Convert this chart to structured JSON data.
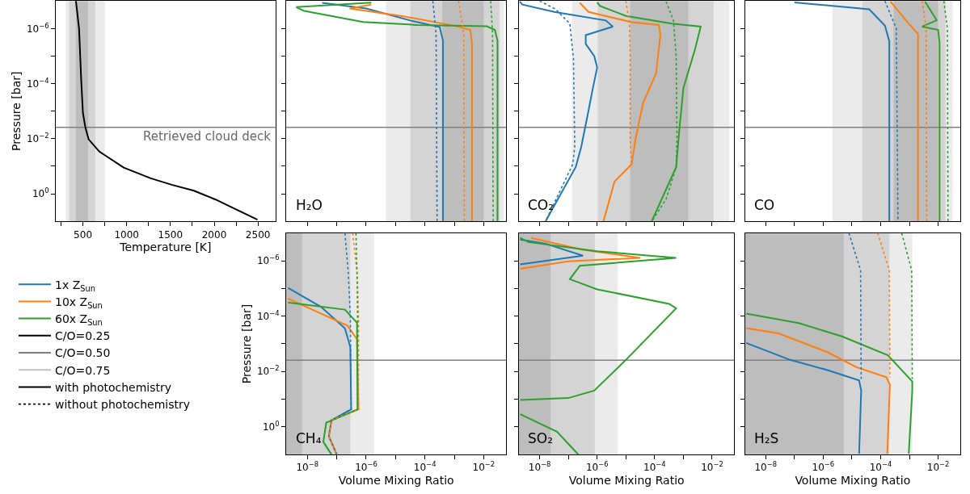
{
  "chart_data": [
    {
      "type": "line",
      "xlabel": "Temperature [K]",
      "ylabel": "Pressure [bar]",
      "log": "y",
      "xlim": [
        190,
        2700
      ],
      "ylim": [
        10,
        1e-07
      ],
      "xticks": [
        {
          "value": 250,
          "label": null
        },
        500,
        {
          "value": 750,
          "label": null
        },
        1000,
        {
          "value": 1250,
          "label": null
        },
        1500,
        {
          "value": 1750,
          "label": null
        },
        2000,
        {
          "value": 2250,
          "label": null
        },
        2500
      ],
      "yticks": [
        {
          "value": 1e-06,
          "label": "10$^{−6}$"
        },
        {
          "value": 1e-05,
          "label": null
        },
        {
          "value": 0.0001,
          "label": "10$^{−4}$"
        },
        {
          "value": 0.001,
          "label": null
        },
        {
          "value": 0.01,
          "label": "10$^{−2}$"
        },
        {
          "value": 0.1,
          "label": null
        },
        {
          "value": 1,
          "label": "10$^{0}$"
        }
      ],
      "bands": [
        {
          "axis": "x",
          "from": 303,
          "to": 750,
          "color": "#ebebeb"
        },
        {
          "axis": "x",
          "from": 343,
          "to": 642,
          "color": "#d4d4d4"
        },
        {
          "axis": "x",
          "from": 420,
          "to": 560,
          "color": "#bdbdbd"
        }
      ],
      "ref_lines": [
        {
          "axis": "y",
          "value": 0.0039,
          "label": "Retrieved cloud deck",
          "color": "#808080"
        }
      ],
      "series": [
        {
          "color": "#000000",
          "x": [
            420,
            456,
            481,
            500,
            528,
            565,
            688,
            966,
            1275,
            1522,
            1769,
            2016,
            2494
          ],
          "values": [
            1e-07,
            1e-06,
            7.9e-05,
            0.00115,
            0.0039,
            0.0105,
            0.0295,
            0.112,
            0.275,
            0.479,
            0.776,
            1.62,
            8.7
          ]
        }
      ]
    },
    {
      "type": "line",
      "annotations": [
        "H₂O"
      ],
      "log": "xy",
      "xlim": [
        1.9e-09,
        0.059
      ],
      "ylim": [
        10,
        1e-07
      ],
      "tick_labels": false,
      "xticks": [
        {
          "value": 1e-08,
          "label": null
        },
        {
          "value": 1e-07,
          "label": null
        },
        {
          "value": 1e-06,
          "label": null
        },
        {
          "value": 1e-05,
          "label": null
        },
        {
          "value": 0.0001,
          "label": null
        },
        {
          "value": 0.001,
          "label": null
        },
        {
          "value": 0.01,
          "label": null
        }
      ],
      "yticks": [
        {
          "value": 1e-06,
          "label": null
        },
        {
          "value": 1e-05,
          "label": null
        },
        {
          "value": 0.0001,
          "label": null
        },
        {
          "value": 0.001,
          "label": null
        },
        {
          "value": 0.01,
          "label": null
        },
        {
          "value": 0.1,
          "label": null
        },
        {
          "value": 1,
          "label": null
        }
      ],
      "bands": [
        {
          "axis": "x",
          "from": 4.7e-06,
          "to": 0.049,
          "color": "#ebebeb"
        },
        {
          "axis": "x",
          "from": 3.2e-05,
          "to": 0.035,
          "color": "#d4d4d4"
        },
        {
          "axis": "x",
          "from": 0.00039,
          "to": 0.01,
          "color": "#bdbdbd"
        }
      ],
      "ref_lines": [
        {
          "axis": "y",
          "value": 0.0039,
          "color": "#808080"
        }
      ],
      "series": [
        {
          "color": "#1f77b4",
          "x": [
            3.2e-08,
            1e-06,
            3.2e-05,
            0.00032,
            0.00041,
            0.00041
          ],
          "values": [
            1.17e-07,
            1.86e-07,
            5.1e-07,
            8.9e-07,
            2.75e-06,
            10
          ]
        },
        {
          "color": "#ff7f0e",
          "x": [
            1.5e-06,
            2.75e-07,
            1.86e-05,
            0.001,
            0.0035,
            0.004,
            0.004
          ],
          "values": [
            1.35e-07,
            1.86e-07,
            3.6e-07,
            7.9e-07,
            1.12e-06,
            3.2e-06,
            10
          ]
        },
        {
          "color": "#2ca02c",
          "x": [
            1.5e-06,
            4.2e-09,
            7.8e-09,
            7.9e-07,
            5.4e-05,
            0.0126,
            0.024,
            0.0295,
            0.0295
          ],
          "values": [
            1.15e-07,
            1.66e-07,
            2.3e-07,
            5.8e-07,
            7.4e-07,
            8.3e-07,
            1.12e-06,
            2.75e-06,
            10
          ]
        },
        {
          "color": "#1f77b4",
          "line_style": "dotted",
          "x": [
            0.000186,
            0.00024,
            0.00026
          ],
          "values": [
            1e-07,
            1.6e-06,
            10
          ]
        },
        {
          "color": "#ff7f0e",
          "line_style": "dotted",
          "x": [
            0.0014,
            0.0021,
            0.0022
          ],
          "values": [
            1e-07,
            1.6e-06,
            10
          ]
        },
        {
          "color": "#2ca02c",
          "line_style": "dotted",
          "x": [
            0.0174,
            0.02,
            0.021
          ],
          "values": [
            1e-07,
            1.6e-06,
            10
          ]
        }
      ]
    },
    {
      "type": "line",
      "annotations": [
        "CO₂"
      ],
      "log": "xy",
      "xlim": [
        1.9e-09,
        0.059
      ],
      "ylim": [
        10,
        1e-07
      ],
      "tick_labels": false,
      "xticks": [
        {
          "value": 1e-08,
          "label": null
        },
        {
          "value": 1e-07,
          "label": null
        },
        {
          "value": 1e-06,
          "label": null
        },
        {
          "value": 1e-05,
          "label": null
        },
        {
          "value": 0.0001,
          "label": null
        },
        {
          "value": 0.001,
          "label": null
        },
        {
          "value": 0.01,
          "label": null
        }
      ],
      "yticks": [
        {
          "value": 1e-06,
          "label": null
        },
        {
          "value": 1e-05,
          "label": null
        },
        {
          "value": 0.0001,
          "label": null
        },
        {
          "value": 0.001,
          "label": null
        },
        {
          "value": 0.01,
          "label": null
        },
        {
          "value": 0.1,
          "label": null
        },
        {
          "value": 1,
          "label": null
        }
      ],
      "bands": [
        {
          "axis": "x",
          "from": 1.32e-07,
          "to": 0.04,
          "color": "#ebebeb"
        },
        {
          "axis": "x",
          "from": 1.05e-06,
          "to": 0.0112,
          "color": "#d4d4d4"
        },
        {
          "axis": "x",
          "from": 1.41e-05,
          "to": 0.00148,
          "color": "#bdbdbd"
        }
      ],
      "ref_lines": [
        {
          "axis": "y",
          "value": 0.0039,
          "color": "#808080"
        }
      ],
      "series": [
        {
          "color": "#1f77b4",
          "x": [
            2e-09,
            2.5e-09,
            3.2e-08,
            2e-06,
            3.5e-06,
            4e-07,
            4e-07,
            7.9e-07,
            1e-06,
            7.1e-07,
            4.5e-07,
            2.8e-07,
            1.8e-07,
            1.6e-08
          ],
          "values": [
            1.05e-07,
            1.35e-07,
            2.5e-07,
            5.1e-07,
            8.5e-07,
            1.74e-06,
            3.6e-06,
            1e-05,
            2.6e-05,
            0.000145,
            0.00166,
            0.0195,
            0.107,
            10
          ]
        },
        {
          "color": "#ff7f0e",
          "x": [
            2.5e-07,
            5e-07,
            1.58e-05,
            0.000141,
            0.000158,
            0.000112,
            4e-05,
            2.2e-05,
            1.58e-05,
            4e-06,
            1.66e-06
          ],
          "values": [
            1.17e-07,
            2.5e-07,
            5.9e-07,
            7.4e-07,
            1.74e-06,
            4.3e-05,
            0.00049,
            0.0093,
            0.085,
            0.36,
            10
          ]
        },
        {
          "color": "#2ca02c",
          "x": [
            1e-06,
            1.26e-06,
            1e-05,
            0.0004,
            0.004,
            0.0025,
            0.001,
            0.00071,
            0.00056,
            7.9e-05
          ],
          "values": [
            1.12e-07,
            1.51e-07,
            3.5e-07,
            6.6e-07,
            8.5e-07,
            6e-06,
            0.000145,
            0.0058,
            0.107,
            10
          ]
        },
        {
          "color": "#1f77b4",
          "line_style": "dotted",
          "x": [
            1e-08,
            3.5e-08,
            1.12e-07,
            1.5e-07,
            1.66e-07,
            1.41e-07,
            1.6e-08
          ],
          "values": [
            1e-07,
            1.95e-07,
            6.6e-07,
            1.26e-05,
            0.0195,
            0.085,
            10
          ]
        },
        {
          "color": "#ff7f0e",
          "line_style": "dotted",
          "x": [
            1e-05,
            1.32e-05,
            1.41e-05,
            1.41e-05,
            1.58e-05,
            4e-06,
            1.66e-06
          ],
          "values": [
            1e-07,
            6.3e-07,
            1e-05,
            0.01,
            0.085,
            0.36,
            10
          ]
        },
        {
          "color": "#2ca02c",
          "line_style": "dotted",
          "x": [
            0.00025,
            0.00045,
            0.00056,
            0.0006,
            0.00056,
            0.00025,
            7.9e-05
          ],
          "values": [
            1.05e-07,
            5e-07,
            1e-05,
            0.01,
            0.107,
            1.58,
            10
          ]
        }
      ]
    },
    {
      "type": "line",
      "annotations": [
        "CO"
      ],
      "log": "xy",
      "xlim": [
        1.9e-09,
        0.059
      ],
      "ylim": [
        10,
        1e-07
      ],
      "tick_labels": false,
      "xticks": [
        {
          "value": 1e-08,
          "label": null
        },
        {
          "value": 1e-07,
          "label": null
        },
        {
          "value": 1e-06,
          "label": null
        },
        {
          "value": 1e-05,
          "label": null
        },
        {
          "value": 0.0001,
          "label": null
        },
        {
          "value": 0.001,
          "label": null
        },
        {
          "value": 0.01,
          "label": null
        }
      ],
      "yticks": [
        {
          "value": 1e-06,
          "label": null
        },
        {
          "value": 1e-05,
          "label": null
        },
        {
          "value": 0.0001,
          "label": null
        },
        {
          "value": 0.001,
          "label": null
        },
        {
          "value": 0.01,
          "label": null
        },
        {
          "value": 0.1,
          "label": null
        },
        {
          "value": 1,
          "label": null
        }
      ],
      "bands": [
        {
          "axis": "x",
          "from": 2.1e-06,
          "to": 0.032,
          "color": "#ebebeb"
        },
        {
          "axis": "x",
          "from": 2.3e-05,
          "to": 0.018,
          "color": "#d4d4d4"
        },
        {
          "axis": "x",
          "from": 0.00028,
          "to": 0.01,
          "color": "#bdbdbd"
        }
      ],
      "ref_lines": [
        {
          "axis": "y",
          "value": 0.0039,
          "color": "#808080"
        }
      ],
      "series": [
        {
          "color": "#1f77b4",
          "x": [
            1e-07,
            4e-05,
            0.000141,
            0.0002,
            0.0002
          ],
          "values": [
            1.12e-07,
            2e-07,
            7.9e-07,
            2.9e-06,
            10
          ]
        },
        {
          "color": "#ff7f0e",
          "x": [
            0.00022,
            0.001,
            0.002,
            0.002
          ],
          "values": [
            1.05e-07,
            7.1e-07,
            1.58e-06,
            10
          ]
        },
        {
          "color": "#2ca02c",
          "x": [
            0.0035,
            0.0089,
            0.0028,
            0.01,
            0.0112,
            0.0112
          ],
          "values": [
            1.05e-07,
            5e-07,
            8.5e-07,
            1.12e-06,
            3.2e-06,
            10
          ]
        },
        {
          "color": "#1f77b4",
          "line_style": "dotted",
          "x": [
            0.000141,
            0.00035,
            0.0004
          ],
          "values": [
            1e-07,
            1e-06,
            10
          ]
        },
        {
          "color": "#ff7f0e",
          "line_style": "dotted",
          "x": [
            0.0028,
            0.0038,
            0.004
          ],
          "values": [
            1e-07,
            1e-06,
            10
          ]
        },
        {
          "color": "#2ca02c",
          "line_style": "dotted",
          "x": [
            0.0158,
            0.021,
            0.022
          ],
          "values": [
            1e-07,
            1e-06,
            10
          ]
        }
      ]
    },
    {
      "type": "line",
      "annotations": [
        "CH₄"
      ],
      "xlabel": "Volume Mixing Ratio",
      "ylabel": "Pressure [bar]",
      "log": "xy",
      "xlim": [
        1.9e-09,
        0.059
      ],
      "ylim": [
        10,
        1e-07
      ],
      "legend": "left",
      "xticks": [
        {
          "value": 1e-08,
          "label": "10$^{−8}$"
        },
        {
          "value": 1e-07,
          "label": null
        },
        {
          "value": 1e-06,
          "label": "10$^{−6}$"
        },
        {
          "value": 1e-05,
          "label": null
        },
        {
          "value": 0.0001,
          "label": "10$^{−4}$"
        },
        {
          "value": 0.001,
          "label": null
        },
        {
          "value": 0.01,
          "label": "10$^{−2}$"
        }
      ],
      "yticks": [
        {
          "value": 1e-06,
          "label": "10$^{−6}$"
        },
        {
          "value": 1e-05,
          "label": null
        },
        {
          "value": 0.0001,
          "label": "10$^{−4}$"
        },
        {
          "value": 0.001,
          "label": null
        },
        {
          "value": 0.01,
          "label": "10$^{−2}$"
        },
        {
          "value": 0.1,
          "label": null
        },
        {
          "value": 1,
          "label": "10$^{0}$"
        }
      ],
      "bands": [
        {
          "axis": "x",
          "from": 1.9e-09,
          "to": 1.9e-06,
          "color": "#ebebeb"
        },
        {
          "axis": "x",
          "from": 1.9e-09,
          "to": 2.9e-07,
          "color": "#d4d4d4"
        },
        {
          "axis": "x",
          "from": 1.9e-09,
          "to": 6.6e-09,
          "color": "#bdbdbd"
        }
      ],
      "ref_lines": [
        {
          "axis": "y",
          "value": 0.0039,
          "color": "#808080"
        }
      ],
      "series": [
        {
          "name": "1x Z$_{Sun}$",
          "color": "#1f77b4",
          "x": [
            2.2e-09,
            2.9e-08,
            1.9e-07,
            2.9e-07,
            3.1e-07,
            6.6e-08,
            5.4e-08,
            1e-07
          ],
          "values": [
            9.5e-06,
            4.6e-05,
            0.000275,
            0.00132,
            0.234,
            0.575,
            2.2,
            10
          ]
        },
        {
          "name": "10x Z$_{Sun}$",
          "color": "#ff7f0e",
          "x": [
            2.2e-09,
            2.3e-07,
            4.9e-07,
            5.5e-07,
            6.6e-08,
            5.4e-08,
            1e-07
          ],
          "values": [
            2.3e-05,
            0.00022,
            0.00068,
            0.234,
            0.575,
            2.2,
            10
          ]
        },
        {
          "name": "60x Z$_{Sun}$",
          "color": "#2ca02c",
          "x": [
            2.2e-09,
            1.9e-07,
            4.9e-07,
            5.1e-07,
            4.4e-08,
            3.5e-08,
            6.6e-08
          ],
          "values": [
            3.2e-05,
            5.8e-05,
            0.000174,
            0.234,
            0.71,
            3.5,
            10
          ]
        },
        {
          "name": "C/O=0.25",
          "color": "#000000"
        },
        {
          "name": "C/O=0.50",
          "color": "#808080"
        },
        {
          "name": "C/O=0.75",
          "color": "#c0c0c0"
        },
        {
          "name": "with photochemistry",
          "color": "#000000"
        },
        {
          "name": "without photochemistry",
          "color": "#000000",
          "line_style": "dotted"
        },
        {
          "color": "#1f77b4",
          "line_style": "dotted",
          "x": [
            1.9e-07,
            2.5e-07,
            2.9e-07,
            3.1e-07,
            6.6e-08,
            5.4e-08,
            1e-07
          ],
          "values": [
            1e-07,
            3.1e-06,
            0.0001,
            0.234,
            0.575,
            2.2,
            10
          ]
        },
        {
          "color": "#ff7f0e",
          "line_style": "dotted",
          "x": [
            3.5e-07,
            5e-07,
            5.5e-07,
            5.5e-07,
            6.6e-08,
            5.4e-08,
            1e-07
          ],
          "values": [
            1e-07,
            3.1e-06,
            0.0001,
            0.234,
            0.575,
            2.2,
            10
          ]
        },
        {
          "color": "#2ca02c",
          "line_style": "dotted",
          "x": [
            4.5e-07,
            4.9e-07,
            5.1e-07,
            5.1e-07,
            4.4e-08,
            3.5e-08,
            6.6e-08
          ],
          "values": [
            1e-07,
            3.1e-06,
            0.0001,
            0.234,
            0.71,
            3.5,
            10
          ]
        }
      ]
    },
    {
      "type": "line",
      "annotations": [
        "SO₂"
      ],
      "xlabel": "Volume Mixing Ratio",
      "log": "xy",
      "xlim": [
        1.9e-09,
        0.059
      ],
      "ylim": [
        10,
        1e-07
      ],
      "tick_labels": "x",
      "xticks": [
        {
          "value": 1e-08,
          "label": "10$^{−8}$"
        },
        {
          "value": 1e-07,
          "label": null
        },
        {
          "value": 1e-06,
          "label": "10$^{−6}$"
        },
        {
          "value": 1e-05,
          "label": null
        },
        {
          "value": 0.0001,
          "label": "10$^{−4}$"
        },
        {
          "value": 0.001,
          "label": null
        },
        {
          "value": 0.01,
          "label": "10$^{−2}$"
        }
      ],
      "yticks": [
        {
          "value": 1e-06,
          "label": null
        },
        {
          "value": 1e-05,
          "label": null
        },
        {
          "value": 0.0001,
          "label": null
        },
        {
          "value": 0.001,
          "label": null
        },
        {
          "value": 0.01,
          "label": null
        },
        {
          "value": 0.1,
          "label": null
        },
        {
          "value": 1,
          "label": null
        }
      ],
      "bands": [
        {
          "axis": "x",
          "from": 1.9e-09,
          "to": 5.2e-06,
          "color": "#ebebeb"
        },
        {
          "axis": "x",
          "from": 1.9e-09,
          "to": 8.3e-07,
          "color": "#d4d4d4"
        },
        {
          "axis": "x",
          "from": 1.9e-09,
          "to": 2.4e-08,
          "color": "#bdbdbd"
        }
      ],
      "ref_lines": [
        {
          "axis": "y",
          "value": 0.0039,
          "color": "#808080"
        }
      ],
      "series": [
        {
          "color": "#1f77b4",
          "x": [
            2.1e-09,
            1.6e-08,
            3.2e-07,
            2.1e-09
          ],
          "values": [
            1.7e-07,
            2.4e-07,
            6.5e-07,
            1.35e-06
          ]
        },
        {
          "color": "#ff7f0e",
          "x": [
            5e-09,
            3.2e-07,
            3.2e-05,
            1e-07,
            2.1e-09
          ],
          "values": [
            1.48e-07,
            4e-07,
            7.8e-07,
            1.05e-06,
            1.95e-06
          ]
        },
        {
          "color": "#2ca02c",
          "x": [
            2.1e-09,
            4e-09,
            1e-06,
            0.00056,
            2.5e-07,
            1.12e-07,
            1e-06,
            0.00032,
            0.00056,
            1e-05,
            7.9e-07,
            1e-07,
            2.1e-09,
            null,
            2.1e-09,
            4e-08,
            2.2e-07
          ],
          "values": [
            1.48e-07,
            2.1e-07,
            4.5e-07,
            7.8e-07,
            1.51e-06,
            4.6e-06,
            1.07e-05,
            3.6e-05,
            5.2e-05,
            0.0038,
            0.049,
            0.091,
            0.107,
            null,
            0.35,
            1.51,
            10
          ]
        }
      ]
    },
    {
      "type": "line",
      "annotations": [
        "H₂S"
      ],
      "xlabel": "Volume Mixing Ratio",
      "log": "xy",
      "xlim": [
        1.9e-09,
        0.059
      ],
      "ylim": [
        10,
        1e-07
      ],
      "tick_labels": "x",
      "xticks": [
        {
          "value": 1e-08,
          "label": "10$^{−8}$"
        },
        {
          "value": 1e-07,
          "label": null
        },
        {
          "value": 1e-06,
          "label": "10$^{−6}$"
        },
        {
          "value": 1e-05,
          "label": null
        },
        {
          "value": 0.0001,
          "label": "10$^{−4}$"
        },
        {
          "value": 0.001,
          "label": null
        },
        {
          "value": 0.01,
          "label": "10$^{−2}$"
        }
      ],
      "yticks": [
        {
          "value": 1e-06,
          "label": null
        },
        {
          "value": 1e-05,
          "label": null
        },
        {
          "value": 0.0001,
          "label": null
        },
        {
          "value": 0.001,
          "label": null
        },
        {
          "value": 0.01,
          "label": null
        },
        {
          "value": 0.1,
          "label": null
        },
        {
          "value": 1,
          "label": null
        }
      ],
      "bands": [
        {
          "axis": "x",
          "from": 1.9e-09,
          "to": 0.00126,
          "color": "#ebebeb"
        },
        {
          "axis": "x",
          "from": 1.9e-09,
          "to": 0.0002,
          "color": "#d4d4d4"
        },
        {
          "axis": "x",
          "from": 1.9e-09,
          "to": 5.2e-06,
          "color": "#bdbdbd"
        }
      ],
      "ref_lines": [
        {
          "axis": "y",
          "value": 0.0039,
          "color": "#808080"
        }
      ],
      "series": [
        {
          "color": "#1f77b4",
          "x": [
            2.1e-09,
            7.1e-08,
            1.41e-06,
            1.78e-05,
            2.1e-05,
            1.78e-05
          ],
          "values": [
            0.00093,
            0.0038,
            0.0089,
            0.021,
            0.049,
            9.3
          ]
        },
        {
          "color": "#ff7f0e",
          "x": [
            2.1e-09,
            2.8e-08,
            1.41e-06,
            1.41e-05,
            0.000158,
            0.00021,
            0.00017
          ],
          "values": [
            0.00027,
            0.00042,
            0.002,
            0.0069,
            0.0162,
            0.03,
            9.3
          ]
        },
        {
          "color": "#2ca02c",
          "x": [
            2.1e-09,
            1.41e-07,
            4.5e-06,
            0.000178,
            0.00126,
            0.00126,
            0.00095
          ],
          "values": [
            8.1e-05,
            0.000178,
            0.00054,
            0.0026,
            0.023,
            0.049,
            9.3
          ]
        },
        {
          "color": "#1f77b4",
          "line_style": "dotted",
          "x": [
            7.9e-06,
            2e-05,
            2.1e-05
          ],
          "values": [
            1e-07,
            2.2e-06,
            0.0186
          ]
        },
        {
          "color": "#ff7f0e",
          "line_style": "dotted",
          "x": [
            7.9e-05,
            0.0002,
            0.00021
          ],
          "values": [
            1e-07,
            2.2e-06,
            0.0162
          ]
        },
        {
          "color": "#2ca02c",
          "line_style": "dotted",
          "x": [
            0.00054,
            0.0012,
            0.00126
          ],
          "values": [
            1e-07,
            2.2e-06,
            0.0186
          ]
        }
      ]
    }
  ]
}
